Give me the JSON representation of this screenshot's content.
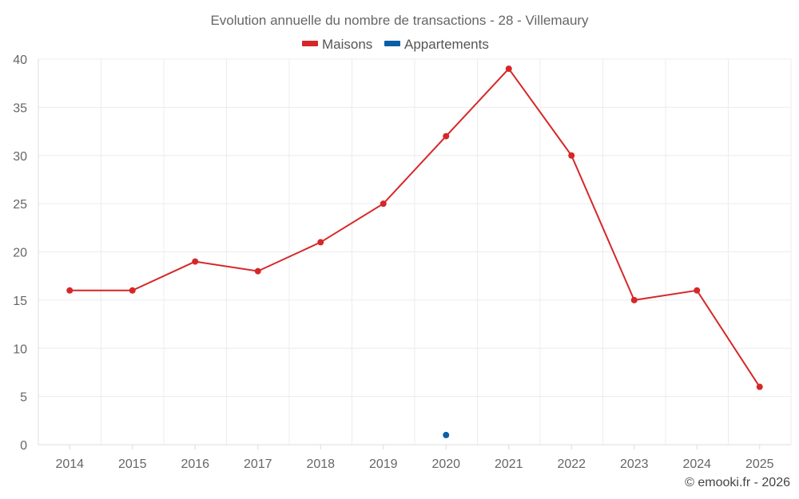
{
  "chart_data": {
    "type": "line",
    "title": "Evolution annuelle du nombre de transactions - 28 - Villemaury",
    "categories": [
      "2014",
      "2015",
      "2016",
      "2017",
      "2018",
      "2019",
      "2020",
      "2021",
      "2022",
      "2023",
      "2024",
      "2025"
    ],
    "series": [
      {
        "name": "Maisons",
        "color": "#d62728",
        "values": [
          16,
          16,
          19,
          18,
          21,
          25,
          32,
          39,
          30,
          15,
          16,
          6
        ]
      },
      {
        "name": "Appartements",
        "color": "#0b5fa5",
        "values": [
          null,
          null,
          null,
          null,
          null,
          null,
          1,
          null,
          null,
          null,
          null,
          null
        ]
      }
    ],
    "ylim": [
      0,
      40
    ],
    "yticks": [
      0,
      5,
      10,
      15,
      20,
      25,
      30,
      35,
      40
    ],
    "grid": true,
    "legend": "top-center",
    "xlabel": "",
    "ylabel": ""
  },
  "credit": "© emooki.fr - 2026"
}
